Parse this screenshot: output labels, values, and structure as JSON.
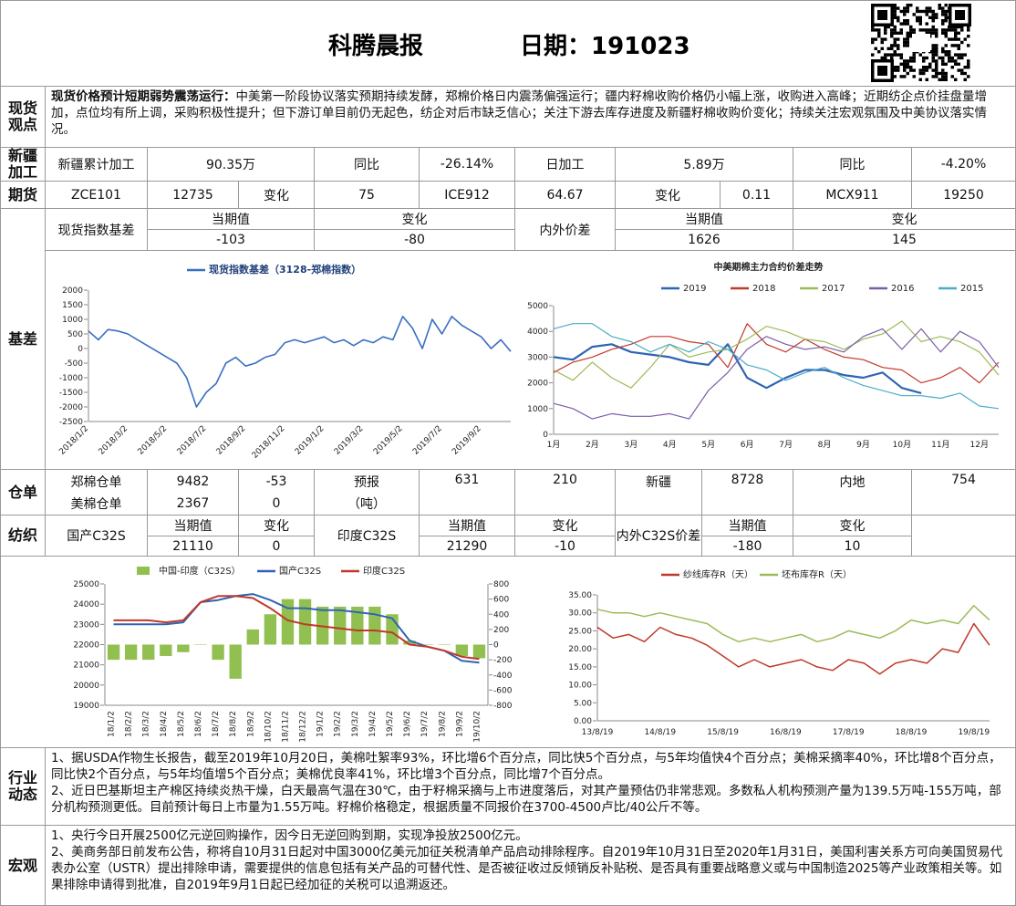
{
  "header": {
    "title": "科腾晨报",
    "date": "日期：191023"
  },
  "spot_view": {
    "label": "现货观点",
    "headline": "现货价格预计短期弱势震荡运行：",
    "text": "中美第一阶段协议落实预期持续发酵，郑棉价格日内震荡偏强运行；疆内籽棉收购价格仍小幅上涨，收购进入高峰；近期纺企点价挂盘量增加，点位均有所上调，采购积极性提升；但下游订单目前仍无起色，纺企对后市缺乏信心；关注下游去库存进度及新疆籽棉收购价变化；持续关注宏观氛围及中美协议落实情况。"
  },
  "xinjiang": {
    "label": "新疆加工",
    "cells": [
      "新疆累计加工",
      "90.35万",
      "同比",
      "-26.14%",
      "日加工",
      "5.89万",
      "同比",
      "-4.20%"
    ]
  },
  "futures": {
    "label": "期货",
    "cells": [
      "ZCE101",
      "12735",
      "变化",
      "75",
      "ICE912",
      "64.67",
      "变化",
      "0.11",
      "MCX911",
      "19250"
    ]
  },
  "basis_table": {
    "rows": [
      [
        "现货指数基差",
        "当期值",
        "变化",
        "内外价差",
        "当期值",
        "变化"
      ],
      [
        "-103",
        "-80",
        "1626",
        "145"
      ]
    ]
  },
  "basis": {
    "label": "基差"
  },
  "warehouse": {
    "label": "仓单",
    "rows": [
      [
        "郑棉仓单",
        "9482",
        "-53",
        "预报",
        "631",
        "210",
        "新疆",
        "8728",
        "内地",
        "754"
      ],
      [
        "美棉仓单",
        "2367",
        "0",
        "（吨）"
      ]
    ]
  },
  "textile": {
    "label": "纺织",
    "rows": [
      [
        "国产C32S",
        "当期值",
        "变化",
        "印度C32S",
        "当期值",
        "变化",
        "内外C32S价差",
        "当期值",
        "变化"
      ],
      [
        "21110",
        "0",
        "21290",
        "-10",
        "-180",
        "10"
      ]
    ]
  },
  "industry": {
    "label": "行业动态",
    "items": [
      "1、据USDA作物生长报告，截至2019年10月20日，美棉吐絮率93%，环比增6个百分点，同比快5个百分点，与5年均值快4个百分点；美棉采摘率40%，环比增8个百分点，同比快2个百分点，与5年均值增5个百分点；美棉优良率41%，环比增3个百分点，同比增7个百分点。",
      "2、近日巴基斯坦主产棉区持续炎热干燥，白天最高气温在30℃，由于籽棉采摘与上市进度落后，对其产量预估仍非常悲观。多数私人机构预测产量为139.5万吨-155万吨，部分机构预测更低。目前预计每日上市量为1.55万吨。籽棉价格稳定，根据质量不同报价在3700-4500卢比/40公斤不等。"
    ]
  },
  "macro": {
    "label": "宏观",
    "items": [
      "1、央行今日开展2500亿元逆回购操作，因今日无逆回购到期，实现净投放2500亿元。",
      "2、美商务部日前发布公告，称将自10月31日起对中国3000亿美元加征关税清单产品启动排除程序。自2019年10月31日至2020年1月31日，美国利害关系方可向美国贸易代表办公室（USTR）提出排除申请，需要提供的信息包括有关产品的可替代性、是否被征收过反倾销反补贴税、是否具有重要战略意义或与中国制造2025等产业政策相关等。如果排除申请得到批准，自2019年9月1日起已经加征的关税可以追溯返还。"
    ]
  },
  "chart_data": [
    {
      "type": "line",
      "legend": "top-left",
      "categories": [
        "2018/1/2",
        null,
        null,
        null,
        "2018/3/2",
        null,
        null,
        null,
        "2018/5/2",
        null,
        null,
        null,
        "2018/7/2",
        null,
        null,
        null,
        "2018/9/2",
        null,
        null,
        null,
        "2018/11/2",
        null,
        null,
        null,
        "2019/1/2",
        null,
        null,
        null,
        "2019/3/2",
        null,
        null,
        null,
        "2019/5/2",
        null,
        null,
        null,
        "2019/7/2",
        null,
        null,
        null,
        "2019/9/2",
        null,
        null,
        null
      ],
      "series": [
        {
          "name": "现货指数基差（3128-郑棉指数）",
          "color": "#3a6fc0",
          "values": [
            600,
            300,
            650,
            600,
            500,
            300,
            100,
            -100,
            -300,
            -500,
            -1000,
            -2000,
            -1500,
            -1200,
            -500,
            -300,
            -600,
            -500,
            -300,
            -200,
            200,
            300,
            200,
            300,
            400,
            200,
            300,
            100,
            300,
            200,
            400,
            300,
            1100,
            700,
            0,
            1000,
            500,
            1100,
            800,
            600,
            400,
            0,
            300,
            -100
          ]
        }
      ],
      "ylim": [
        -2500,
        2000
      ],
      "yticks": [
        2000,
        1500,
        1000,
        500,
        0,
        -500,
        -1000,
        -1500,
        -2000,
        -2500
      ]
    },
    {
      "type": "line",
      "title": "中美期棉主力合约价差走势",
      "legend": "top",
      "categories": [
        "1月",
        null,
        "2月",
        null,
        "3月",
        null,
        "4月",
        null,
        "5月",
        null,
        "6月",
        null,
        "7月",
        null,
        "8月",
        null,
        "9月",
        null,
        "10月",
        null,
        "11月",
        null,
        "12月",
        null
      ],
      "series": [
        {
          "name": "2019",
          "color": "#2e64b4",
          "values": [
            3000,
            2900,
            3400,
            3500,
            3200,
            3100,
            3000,
            2800,
            2700,
            3500,
            2200,
            1800,
            2200,
            2500,
            2500,
            2300,
            2200,
            2400,
            1800,
            1600,
            null,
            null,
            null,
            null
          ]
        },
        {
          "name": "2018",
          "color": "#c0392b",
          "values": [
            2400,
            2800,
            3000,
            3300,
            3500,
            3800,
            3800,
            3600,
            3500,
            2600,
            4300,
            3500,
            3200,
            3700,
            3300,
            3000,
            2900,
            2600,
            2500,
            2000,
            2200,
            2600,
            2000,
            2800
          ]
        },
        {
          "name": "2017",
          "color": "#9bbb59",
          "values": [
            2500,
            2100,
            2800,
            2200,
            1800,
            2600,
            3500,
            3000,
            3200,
            3300,
            3700,
            4200,
            4000,
            3700,
            3600,
            3300,
            3700,
            3900,
            4400,
            3600,
            3800,
            3600,
            3200,
            2300
          ]
        },
        {
          "name": "2016",
          "color": "#7b5ca6",
          "values": [
            1200,
            1000,
            600,
            800,
            700,
            700,
            800,
            600,
            1700,
            2400,
            3300,
            3800,
            3500,
            3300,
            3400,
            3200,
            3800,
            4100,
            3300,
            4100,
            3200,
            4000,
            3600,
            2600
          ]
        },
        {
          "name": "2015",
          "color": "#4bacc6",
          "values": [
            4100,
            4300,
            4300,
            3800,
            3600,
            3200,
            3500,
            3200,
            3600,
            3300,
            2700,
            2500,
            2100,
            2400,
            2600,
            2200,
            1900,
            1700,
            1500,
            1500,
            1400,
            1600,
            1100,
            1000
          ]
        }
      ],
      "ylim": [
        0,
        5000
      ],
      "yticks": [
        0,
        1000,
        2000,
        3000,
        4000,
        5000
      ]
    },
    {
      "type": "combo",
      "legend": "top",
      "categories": [
        "18/1/2",
        "18/2/2",
        "18/3/2",
        "18/4/2",
        "18/5/2",
        "18/6/2",
        "18/7/2",
        "18/8/2",
        "18/9/2",
        "18/10/2",
        "18/11/2",
        "18/12/2",
        "19/1/2",
        "19/2/2",
        "19/3/2",
        "19/4/2",
        "19/5/2",
        "19/6/2",
        "19/7/2",
        "19/8/2",
        "19/9/2",
        "19/10/2"
      ],
      "series": [
        {
          "name": "中国-印度（C32S）",
          "type": "bar",
          "axis": "y2",
          "color": "#92c050",
          "values": [
            -200,
            -200,
            -200,
            -150,
            -100,
            0,
            -200,
            -450,
            200,
            400,
            600,
            600,
            500,
            500,
            500,
            500,
            400,
            50,
            0,
            0,
            -150,
            -180
          ]
        },
        {
          "name": "国产C32S",
          "color": "#2e64b4",
          "values": [
            23000,
            23000,
            23000,
            23000,
            23100,
            24100,
            24200,
            24400,
            24500,
            24200,
            23800,
            23800,
            23700,
            23700,
            23600,
            23500,
            23300,
            22200,
            21900,
            21700,
            21200,
            21110
          ]
        },
        {
          "name": "印度C32S",
          "color": "#c0392b",
          "values": [
            23200,
            23200,
            23200,
            23100,
            23200,
            24100,
            24400,
            24400,
            24300,
            23800,
            23200,
            23000,
            22900,
            22800,
            22700,
            22700,
            22600,
            22000,
            21900,
            21700,
            21400,
            21290
          ]
        }
      ],
      "ylim": [
        19000,
        25000
      ],
      "yticks": [
        19000,
        20000,
        21000,
        22000,
        23000,
        24000,
        25000
      ],
      "y2lim": [
        -800,
        800
      ],
      "y2ticks": [
        -800,
        -600,
        -400,
        -200,
        0,
        200,
        400,
        600,
        800
      ]
    },
    {
      "type": "line",
      "legend": "top",
      "categories": [
        "13/8/19",
        null,
        null,
        null,
        "14/8/19",
        null,
        null,
        null,
        "15/8/19",
        null,
        null,
        null,
        "16/8/19",
        null,
        null,
        null,
        "17/8/19",
        null,
        null,
        null,
        "18/8/19",
        null,
        null,
        null,
        "19/8/19",
        null
      ],
      "series": [
        {
          "name": "纱线库存R（天）",
          "color": "#c0392b",
          "values": [
            26,
            23,
            24,
            22,
            26,
            24,
            23,
            21,
            18,
            15,
            17,
            15,
            16,
            17,
            15,
            14,
            17,
            16,
            13,
            16,
            17,
            16,
            20,
            19,
            27,
            21
          ]
        },
        {
          "name": "坯布库存R（天）",
          "color": "#9bbb59",
          "values": [
            31,
            30,
            30,
            29,
            30,
            29,
            28,
            27,
            24,
            22,
            23,
            22,
            23,
            24,
            22,
            23,
            25,
            24,
            23,
            25,
            28,
            27,
            28,
            27,
            32,
            28
          ]
        }
      ],
      "ylim": [
        0,
        35
      ],
      "yticks": [
        {
          "value": 0,
          "label": "0.00"
        },
        {
          "value": 5,
          "label": "5.00"
        },
        {
          "value": 10,
          "label": "10.00"
        },
        {
          "value": 15,
          "label": "15.00"
        },
        {
          "value": 20,
          "label": "20.00"
        },
        {
          "value": 25,
          "label": "25.00"
        },
        {
          "value": 30,
          "label": "30.00"
        },
        {
          "value": 35,
          "label": "35.00"
        }
      ]
    }
  ]
}
